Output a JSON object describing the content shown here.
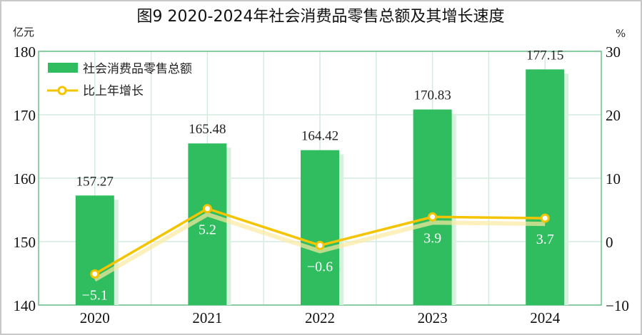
{
  "chart_data": {
    "type": "bar+line",
    "title": "图9 2020-2024年社会消费品零售总额及其增长速度",
    "categories": [
      "2020",
      "2021",
      "2022",
      "2023",
      "2024"
    ],
    "series": [
      {
        "name": "社会消费品零售总额",
        "type": "bar",
        "axis": "left",
        "values": [
          157.27,
          165.48,
          164.42,
          170.83,
          177.15
        ],
        "color": "#2fbd5f"
      },
      {
        "name": "比上年增长",
        "type": "line",
        "axis": "right",
        "values": [
          -5.1,
          5.2,
          -0.6,
          3.9,
          3.7
        ],
        "color": "#f5c400"
      }
    ],
    "bar_labels": [
      "157.27",
      "165.48",
      "164.42",
      "170.83",
      "177.15"
    ],
    "line_labels": [
      "−5.1",
      "5.2",
      "−0.6",
      "3.9",
      "3.7"
    ],
    "y_left": {
      "unit": "亿元",
      "ylim": [
        140,
        180
      ],
      "ticks": [
        "140",
        "150",
        "160",
        "170",
        "180"
      ]
    },
    "y_right": {
      "unit": "%",
      "ylim": [
        -10,
        30
      ],
      "ticks": [
        "−10",
        "0",
        "10",
        "20",
        "30"
      ]
    },
    "grid": true,
    "legend": "top-left"
  }
}
